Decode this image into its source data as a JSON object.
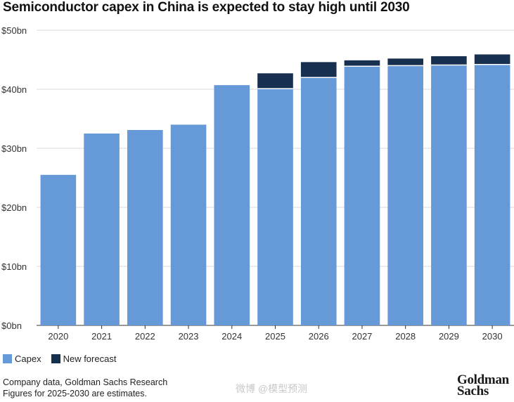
{
  "chart_data": {
    "type": "bar",
    "stacked": true,
    "title": "Semiconductor capex in China is expected to stay high until 2030",
    "categories": [
      "2020",
      "2021",
      "2022",
      "2023",
      "2024",
      "2025",
      "2026",
      "2027",
      "2028",
      "2029",
      "2030"
    ],
    "series": [
      {
        "name": "Capex",
        "color": "#6699d8",
        "values": [
          25.5,
          32.5,
          33.1,
          34.0,
          40.7,
          40.1,
          42.0,
          43.9,
          44.0,
          44.1,
          44.2
        ]
      },
      {
        "name": "New forecast",
        "color": "#18304f",
        "values": [
          0,
          0,
          0,
          0,
          0,
          2.6,
          2.6,
          1.0,
          1.2,
          1.5,
          1.7
        ]
      }
    ],
    "ylim": [
      0,
      50
    ],
    "yticks": [
      0,
      10,
      20,
      30,
      40,
      50
    ],
    "ytick_labels": [
      "$0bn",
      "$10bn",
      "$20bn",
      "$30bn",
      "$40bn",
      "$50bn"
    ],
    "xlabel": "",
    "ylabel": "",
    "grid": true,
    "legend": "bottom-left"
  },
  "footer": {
    "source": "Company data, Goldman Sachs Research",
    "note": "Figures for 2025-2030 are estimates."
  },
  "watermark": "微博 @模型预测",
  "logo": {
    "line1": "Goldman",
    "line2": "Sachs"
  }
}
